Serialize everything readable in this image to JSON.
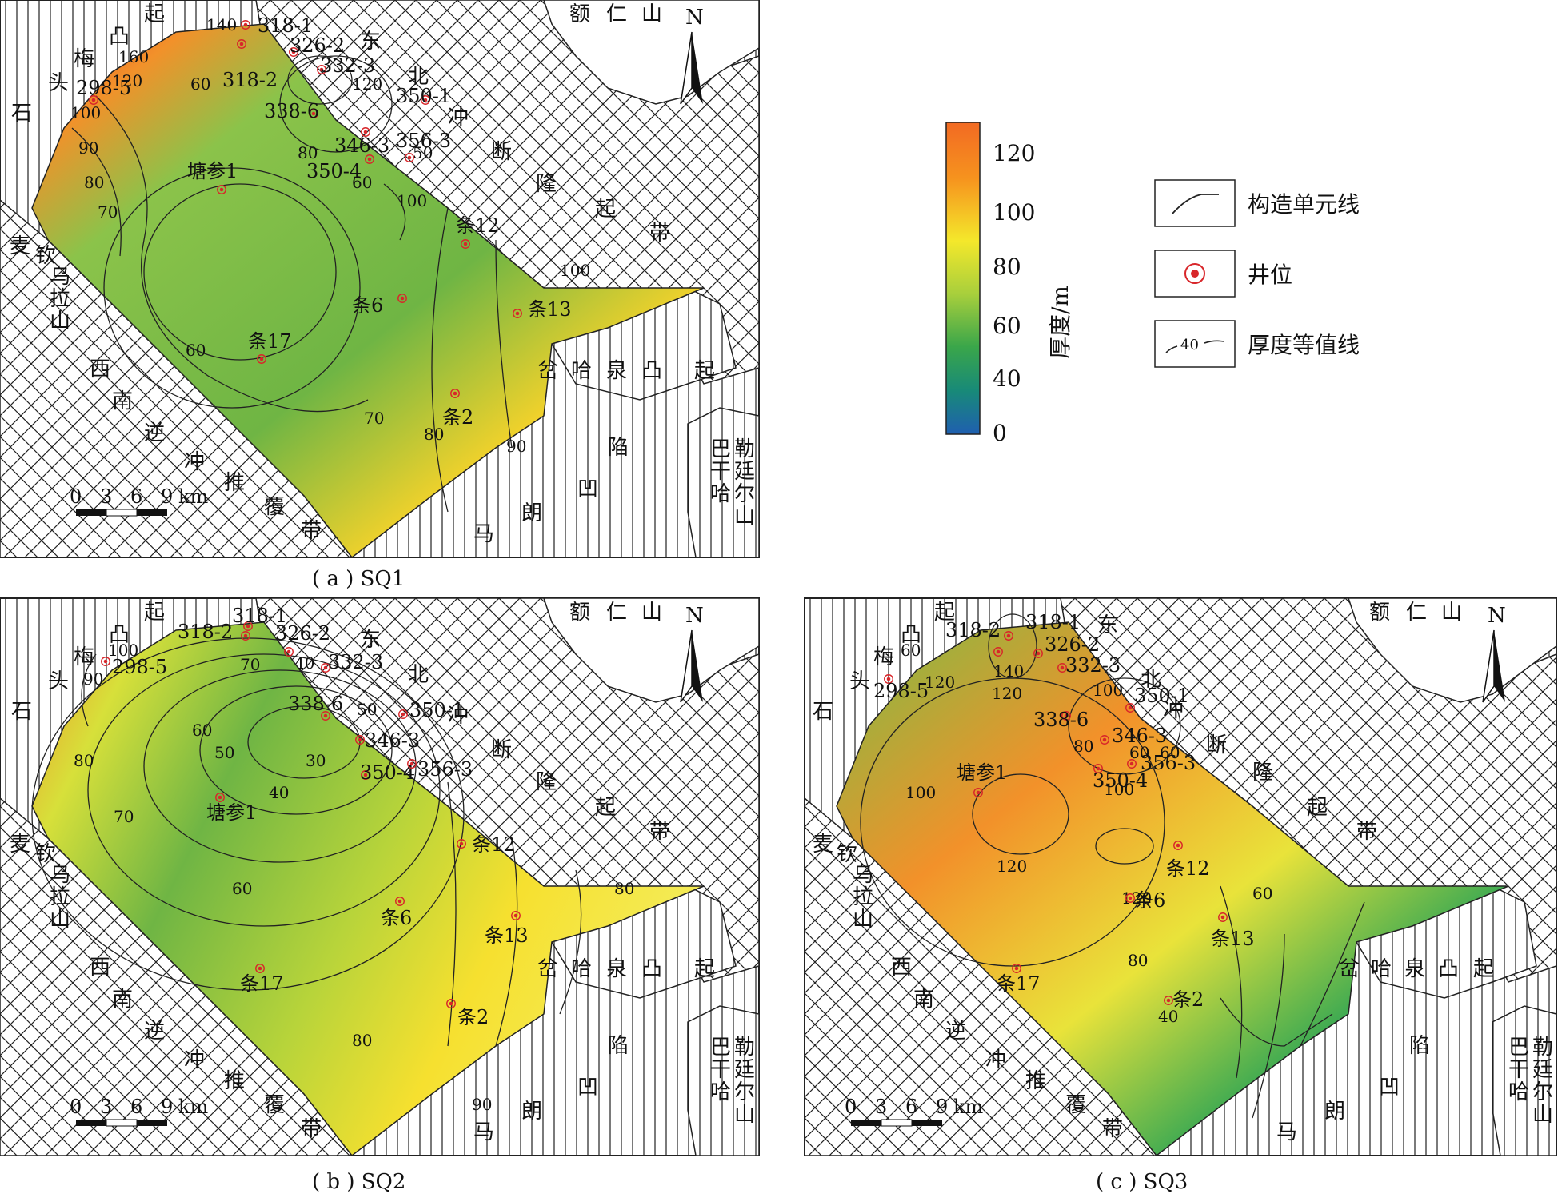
{
  "figure": {
    "captions": [
      "( a ) SQ1",
      "( b ) SQ2",
      "( c ) SQ3"
    ]
  },
  "colorbar": {
    "axis_label": "厚度/m",
    "ticks": [
      "120",
      "100",
      "80",
      "60",
      "40",
      "0"
    ]
  },
  "legend": {
    "items": [
      {
        "label": "构造单元线",
        "icon": "structural-unit-line-icon"
      },
      {
        "label": "井位",
        "icon": "well-location-icon"
      },
      {
        "label": "厚度等值线",
        "icon": "thickness-contour-icon",
        "sample": "40"
      }
    ]
  },
  "map_common": {
    "north": "N",
    "scale": {
      "ticks": [
        "0",
        "3",
        "6",
        "9"
      ],
      "unit": "km"
    },
    "regions": {
      "erenshan": [
        "额",
        "仁",
        "山"
      ],
      "northeast_belt": [
        "东",
        "北",
        "冲",
        "断",
        "隆",
        "起",
        "带"
      ],
      "shitou_uplift": [
        "石",
        "头",
        "梅",
        "凸",
        "起"
      ],
      "maiqin": [
        "麦",
        "钦",
        "乌",
        "拉",
        "山"
      ],
      "southwest_belt": [
        "西",
        "南",
        "逆",
        "冲",
        "推",
        "覆",
        "带"
      ],
      "chahaquan": [
        "岔",
        "哈",
        "泉",
        "凸",
        "起"
      ],
      "malang": [
        "陷",
        "凹",
        "朗",
        "马"
      ],
      "baganhaer": [
        "巴",
        "干",
        "哈",
        "勒",
        "廷",
        "尔",
        "山"
      ]
    }
  },
  "panels": [
    {
      "id": "SQ1",
      "wells": [
        {
          "name": "298-5"
        },
        {
          "name": "318-1"
        },
        {
          "name": "318-2"
        },
        {
          "name": "326-2"
        },
        {
          "name": "332-3"
        },
        {
          "name": "338-6"
        },
        {
          "name": "346-3"
        },
        {
          "name": "350-1"
        },
        {
          "name": "350-4"
        },
        {
          "name": "356-3"
        },
        {
          "name": "塘参1"
        },
        {
          "name": "条12"
        },
        {
          "name": "条13"
        },
        {
          "name": "条6"
        },
        {
          "name": "条17"
        },
        {
          "name": "条2"
        }
      ],
      "contour_labels": [
        "140",
        "160",
        "120",
        "100",
        "90",
        "80",
        "70",
        "60",
        "60",
        "120",
        "50",
        "80",
        "60",
        "100",
        "100",
        "70",
        "80",
        "90"
      ]
    },
    {
      "id": "SQ2",
      "wells": [
        {
          "name": "298-5"
        },
        {
          "name": "318-1"
        },
        {
          "name": "318-2"
        },
        {
          "name": "326-2"
        },
        {
          "name": "332-3"
        },
        {
          "name": "338-6"
        },
        {
          "name": "346-3"
        },
        {
          "name": "350-1"
        },
        {
          "name": "350-4"
        },
        {
          "name": "356-3"
        },
        {
          "name": "塘参1"
        },
        {
          "name": "条12"
        },
        {
          "name": "条13"
        },
        {
          "name": "条6"
        },
        {
          "name": "条17"
        },
        {
          "name": "条2"
        }
      ],
      "contour_labels": [
        "100",
        "90",
        "80",
        "70",
        "60",
        "50",
        "40",
        "30",
        "40",
        "50",
        "60",
        "70",
        "80",
        "90",
        "80"
      ]
    },
    {
      "id": "SQ3",
      "wells": [
        {
          "name": "298-5"
        },
        {
          "name": "318-1"
        },
        {
          "name": "318-2"
        },
        {
          "name": "326-2"
        },
        {
          "name": "332-3"
        },
        {
          "name": "338-6"
        },
        {
          "name": "346-3"
        },
        {
          "name": "350-1"
        },
        {
          "name": "350-4"
        },
        {
          "name": "356-3"
        },
        {
          "name": "塘参1"
        },
        {
          "name": "条12"
        },
        {
          "name": "条13"
        },
        {
          "name": "条6"
        },
        {
          "name": "条17"
        },
        {
          "name": "条2"
        }
      ],
      "contour_labels": [
        "60",
        "120",
        "140",
        "120",
        "100",
        "80",
        "60",
        "100",
        "60",
        "100",
        "120",
        "120",
        "80",
        "60",
        "40"
      ]
    }
  ]
}
